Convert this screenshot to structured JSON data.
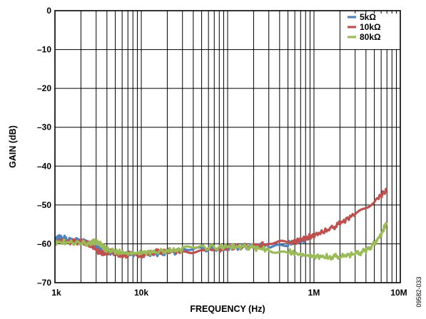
{
  "figure_id": "09582-033",
  "chart_data": {
    "type": "line",
    "xlabel": "FREQUENCY (Hz)",
    "ylabel": "GAIN (dB)",
    "xscale": "log",
    "xlim": [
      1000,
      10000000
    ],
    "ylim": [
      -70,
      0
    ],
    "xticks": [
      {
        "value": 1000,
        "label": "1k"
      },
      {
        "value": 10000,
        "label": "10k"
      },
      {
        "value": 1000000,
        "label": "1M"
      },
      {
        "value": 10000000,
        "label": "10M"
      }
    ],
    "yticks": [
      {
        "value": 0,
        "label": "0"
      },
      {
        "value": -10,
        "label": "–10"
      },
      {
        "value": -20,
        "label": "–20"
      },
      {
        "value": -30,
        "label": "–30"
      },
      {
        "value": -40,
        "label": "–40"
      },
      {
        "value": -50,
        "label": "–50"
      },
      {
        "value": -60,
        "label": "–60"
      },
      {
        "value": -70,
        "label": "–70"
      }
    ],
    "grid": true,
    "legend_position": "top-right",
    "series": [
      {
        "name": "5kΩ",
        "color": "#4f81bd",
        "points": [
          [
            1000,
            -58.5
          ],
          [
            1200,
            -58.4
          ],
          [
            1500,
            -59.0
          ],
          [
            2000,
            -59.3
          ],
          [
            2500,
            -59.8
          ],
          [
            3000,
            -60.6
          ],
          [
            3500,
            -61.5
          ],
          [
            4000,
            -62.0
          ],
          [
            5000,
            -62.3
          ],
          [
            7000,
            -62.6
          ],
          [
            10000,
            -62.8
          ],
          [
            15000,
            -62.5
          ],
          [
            20000,
            -62.2
          ],
          [
            30000,
            -61.8
          ],
          [
            50000,
            -61.5
          ],
          [
            80000,
            -61.2
          ],
          [
            100000,
            -61.0
          ],
          [
            150000,
            -60.8
          ],
          [
            200000,
            -60.7
          ],
          [
            300000,
            -60.3
          ],
          [
            500000,
            -59.8
          ],
          [
            700000,
            -59.3
          ],
          [
            1000000,
            -58.0
          ]
        ]
      },
      {
        "name": "10kΩ",
        "color": "#c0504d",
        "points": [
          [
            1000,
            -59.4
          ],
          [
            1500,
            -59.4
          ],
          [
            2000,
            -59.5
          ],
          [
            2500,
            -60.0
          ],
          [
            3000,
            -61.5
          ],
          [
            3500,
            -62.5
          ],
          [
            4000,
            -62.0
          ],
          [
            5000,
            -62.3
          ],
          [
            6000,
            -63.0
          ],
          [
            7000,
            -62.8
          ],
          [
            9000,
            -63.0
          ],
          [
            10000,
            -63.0
          ],
          [
            12000,
            -62.5
          ],
          [
            15000,
            -62.0
          ],
          [
            20000,
            -62.0
          ],
          [
            30000,
            -61.8
          ],
          [
            50000,
            -61.5
          ],
          [
            80000,
            -61.4
          ],
          [
            100000,
            -61.0
          ],
          [
            200000,
            -60.5
          ],
          [
            300000,
            -60.2
          ],
          [
            500000,
            -59.8
          ],
          [
            700000,
            -59.0
          ],
          [
            1000000,
            -57.8
          ],
          [
            1500000,
            -56.3
          ],
          [
            2000000,
            -54.8
          ],
          [
            3000000,
            -52.2
          ],
          [
            5000000,
            -49.0
          ],
          [
            7000000,
            -46.2
          ]
        ]
      },
      {
        "name": "80kΩ",
        "color": "#9bbb59",
        "points": [
          [
            1000,
            -59.6
          ],
          [
            1500,
            -59.7
          ],
          [
            2000,
            -59.8
          ],
          [
            2500,
            -60.0
          ],
          [
            3000,
            -59.3
          ],
          [
            3500,
            -60.5
          ],
          [
            4000,
            -61.5
          ],
          [
            5000,
            -62.0
          ],
          [
            7000,
            -62.5
          ],
          [
            10000,
            -62.3
          ],
          [
            15000,
            -62.0
          ],
          [
            20000,
            -61.8
          ],
          [
            30000,
            -61.5
          ],
          [
            50000,
            -61.0
          ],
          [
            80000,
            -60.8
          ],
          [
            100000,
            -60.8
          ],
          [
            150000,
            -60.8
          ],
          [
            200000,
            -61.0
          ],
          [
            300000,
            -61.5
          ],
          [
            500000,
            -62.0
          ],
          [
            700000,
            -62.8
          ],
          [
            1000000,
            -63.2
          ],
          [
            1500000,
            -63.4
          ],
          [
            2000000,
            -63.2
          ],
          [
            3000000,
            -62.6
          ],
          [
            4000000,
            -61.8
          ],
          [
            5000000,
            -60.0
          ],
          [
            6000000,
            -57.5
          ],
          [
            7000000,
            -54.5
          ]
        ]
      }
    ]
  }
}
